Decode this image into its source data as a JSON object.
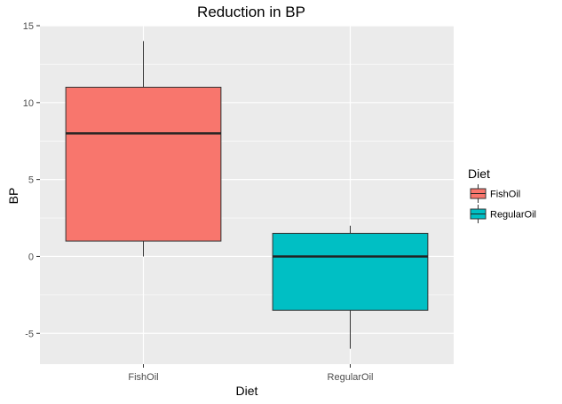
{
  "chart_data": {
    "type": "boxplot",
    "title": "Reduction in BP",
    "xlabel": "Diet",
    "ylabel": "BP",
    "ylim": [
      -7,
      15
    ],
    "yticks": [
      -5,
      0,
      5,
      10,
      15
    ],
    "grid": true,
    "legend": {
      "title": "Diet",
      "placement": "right"
    },
    "categories": [
      "FishOil",
      "RegularOil"
    ],
    "series": [
      {
        "name": "FishOil",
        "color": "#F8766D",
        "min": 0,
        "q1": 1,
        "median": 8,
        "q3": 11,
        "max": 14
      },
      {
        "name": "RegularOil",
        "color": "#00BFC4",
        "min": -6,
        "q1": -3.5,
        "median": 0,
        "q3": 1.5,
        "max": 2
      }
    ]
  }
}
